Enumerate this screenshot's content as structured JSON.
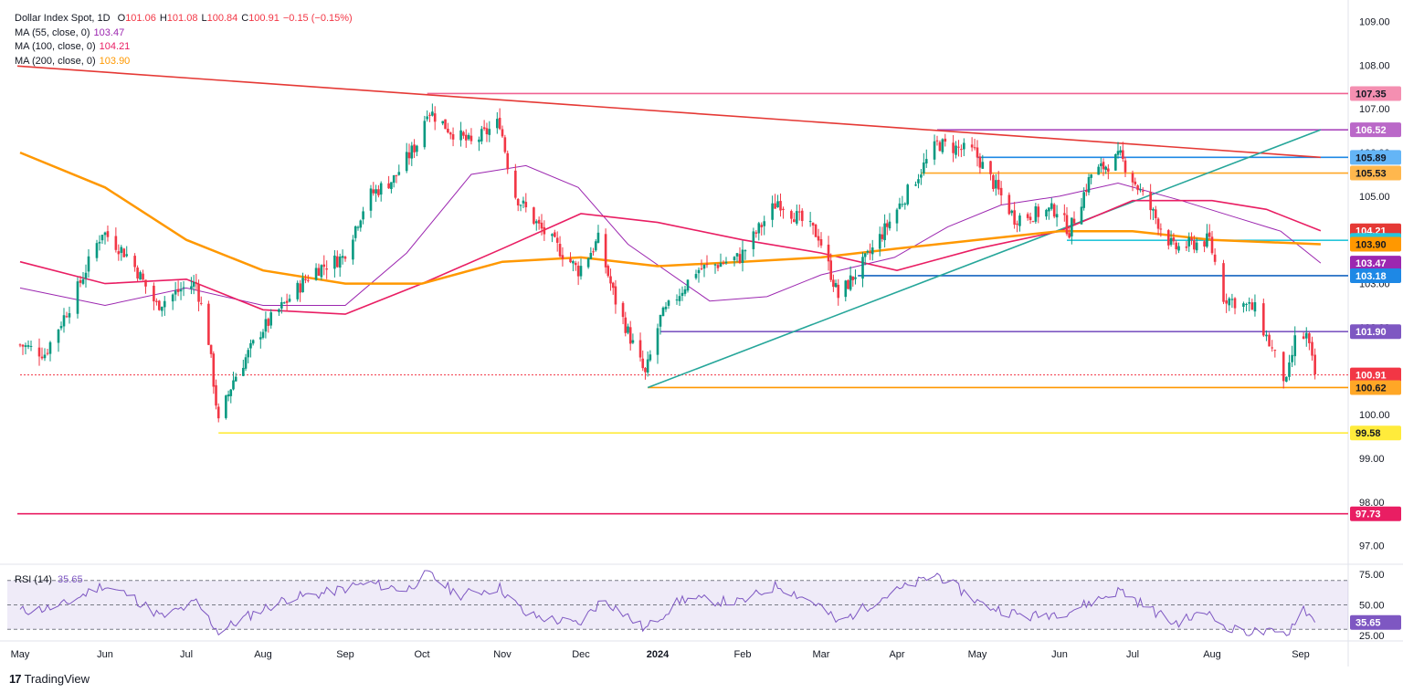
{
  "header": {
    "symbol_title": "Dollar Index Spot, 1D",
    "ohlc": [
      {
        "label": "O",
        "value": "101.06"
      },
      {
        "label": "H",
        "value": "101.08"
      },
      {
        "label": "L",
        "value": "100.84"
      },
      {
        "label": "C",
        "value": "100.91"
      },
      {
        "label": "",
        "value": "−0.15 (−0.15%)"
      }
    ],
    "indicators": [
      {
        "label": "MA (55, close, 0)",
        "value": "103.47",
        "color": "#9c27b0"
      },
      {
        "label": "MA (100, close, 0)",
        "value": "104.21",
        "color": "#e91e63"
      },
      {
        "label": "MA (200, close, 0)",
        "value": "103.90",
        "color": "#ff9800"
      }
    ]
  },
  "rsi_legend": {
    "label": "RSI (14)",
    "value": "35.65",
    "color": "#7e57c2"
  },
  "branding": {
    "name": "TradingView"
  },
  "chart_data": {
    "type": "line",
    "title": "Dollar Index Spot, 1D",
    "x_labels": [
      "May",
      "Jun",
      "Jul",
      "Aug",
      "Sep",
      "Oct",
      "Nov",
      "Dec",
      "2024",
      "Feb",
      "Mar",
      "Apr",
      "May",
      "Jun",
      "Jul",
      "Aug",
      "Sep"
    ],
    "y_ticks": [
      "109.00",
      "108.00",
      "107.00",
      "106.00",
      "105.00",
      "104.00",
      "103.00",
      "102.00",
      "101.00",
      "100.00",
      "99.00",
      "98.00",
      "97.00"
    ],
    "ylim": [
      96.7,
      109.45
    ],
    "close_path": [
      [
        "2023-05-01",
        101.6
      ],
      [
        "2023-05-10",
        101.4
      ],
      [
        "2023-05-20",
        102.6
      ],
      [
        "2023-05-31",
        104.2
      ],
      [
        "2023-06-10",
        103.6
      ],
      [
        "2023-06-20",
        102.5
      ],
      [
        "2023-06-30",
        102.9
      ],
      [
        "2023-07-05",
        103.0
      ],
      [
        "2023-07-10",
        101.7
      ],
      [
        "2023-07-14",
        99.8
      ],
      [
        "2023-07-20",
        100.8
      ],
      [
        "2023-07-31",
        101.9
      ],
      [
        "2023-08-10",
        102.6
      ],
      [
        "2023-08-20",
        103.3
      ],
      [
        "2023-08-31",
        103.6
      ],
      [
        "2023-09-10",
        105.0
      ],
      [
        "2023-09-20",
        105.4
      ],
      [
        "2023-09-30",
        106.3
      ],
      [
        "2023-10-03",
        107.0
      ],
      [
        "2023-10-12",
        106.5
      ],
      [
        "2023-10-20",
        106.2
      ],
      [
        "2023-10-31",
        106.7
      ],
      [
        "2023-11-05",
        105.1
      ],
      [
        "2023-11-15",
        104.3
      ],
      [
        "2023-11-30",
        103.3
      ],
      [
        "2023-12-08",
        104.0
      ],
      [
        "2023-12-15",
        102.6
      ],
      [
        "2023-12-27",
        100.9
      ],
      [
        "2024-01-02",
        102.2
      ],
      [
        "2024-01-15",
        103.3
      ],
      [
        "2024-01-31",
        103.6
      ],
      [
        "2024-02-14",
        104.9
      ],
      [
        "2024-02-29",
        104.1
      ],
      [
        "2024-03-08",
        102.7
      ],
      [
        "2024-03-20",
        103.6
      ],
      [
        "2024-03-31",
        104.6
      ],
      [
        "2024-04-16",
        106.2
      ],
      [
        "2024-04-30",
        106.0
      ],
      [
        "2024-05-15",
        104.5
      ],
      [
        "2024-05-31",
        104.7
      ],
      [
        "2024-06-05",
        104.2
      ],
      [
        "2024-06-14",
        105.5
      ],
      [
        "2024-06-26",
        105.9
      ],
      [
        "2024-07-05",
        105.0
      ],
      [
        "2024-07-17",
        103.8
      ],
      [
        "2024-07-31",
        104.0
      ],
      [
        "2024-08-05",
        102.7
      ],
      [
        "2024-08-16",
        102.4
      ],
      [
        "2024-08-27",
        100.7
      ],
      [
        "2024-08-30",
        101.7
      ],
      [
        "2024-09-03",
        101.8
      ],
      [
        "2024-09-06",
        100.91
      ]
    ],
    "moving_averages": [
      {
        "name": "MA (55, close, 0)",
        "color": "#9c27b0",
        "points": [
          [
            "2023-05-01",
            102.9
          ],
          [
            "2023-06-01",
            102.5
          ],
          [
            "2023-07-01",
            102.9
          ],
          [
            "2023-08-01",
            102.5
          ],
          [
            "2023-09-01",
            102.5
          ],
          [
            "2023-09-25",
            103.7
          ],
          [
            "2023-10-20",
            105.5
          ],
          [
            "2023-11-10",
            105.7
          ],
          [
            "2023-11-30",
            105.2
          ],
          [
            "2023-12-20",
            103.9
          ],
          [
            "2024-01-20",
            102.6
          ],
          [
            "2024-02-10",
            102.7
          ],
          [
            "2024-03-01",
            103.2
          ],
          [
            "2024-03-31",
            103.6
          ],
          [
            "2024-04-20",
            104.3
          ],
          [
            "2024-05-10",
            104.8
          ],
          [
            "2024-06-01",
            105.0
          ],
          [
            "2024-06-25",
            105.3
          ],
          [
            "2024-07-20",
            104.9
          ],
          [
            "2024-08-10",
            104.5
          ],
          [
            "2024-08-25",
            104.2
          ],
          [
            "2024-09-08",
            103.47
          ]
        ]
      },
      {
        "name": "MA (100, close, 0)",
        "color": "#e91e63",
        "points": [
          [
            "2023-05-01",
            103.5
          ],
          [
            "2023-06-01",
            103.0
          ],
          [
            "2023-07-01",
            103.1
          ],
          [
            "2023-08-01",
            102.4
          ],
          [
            "2023-09-01",
            102.3
          ],
          [
            "2023-10-01",
            103.0
          ],
          [
            "2023-11-01",
            103.8
          ],
          [
            "2023-12-01",
            104.6
          ],
          [
            "2024-01-01",
            104.4
          ],
          [
            "2024-02-01",
            104.0
          ],
          [
            "2024-03-01",
            103.7
          ],
          [
            "2024-04-01",
            103.3
          ],
          [
            "2024-05-01",
            103.8
          ],
          [
            "2024-06-01",
            104.2
          ],
          [
            "2024-07-01",
            104.9
          ],
          [
            "2024-08-01",
            104.9
          ],
          [
            "2024-08-20",
            104.7
          ],
          [
            "2024-09-08",
            104.21
          ]
        ]
      },
      {
        "name": "MA (200, close, 0)",
        "color": "#ff9800",
        "points": [
          [
            "2023-05-01",
            106.0
          ],
          [
            "2023-06-01",
            105.2
          ],
          [
            "2023-07-01",
            104.0
          ],
          [
            "2023-08-01",
            103.3
          ],
          [
            "2023-09-01",
            103.0
          ],
          [
            "2023-10-01",
            103.0
          ],
          [
            "2023-11-01",
            103.5
          ],
          [
            "2023-12-01",
            103.6
          ],
          [
            "2024-01-01",
            103.4
          ],
          [
            "2024-02-01",
            103.5
          ],
          [
            "2024-03-01",
            103.6
          ],
          [
            "2024-04-01",
            103.8
          ],
          [
            "2024-05-01",
            104.0
          ],
          [
            "2024-06-01",
            104.2
          ],
          [
            "2024-07-01",
            104.2
          ],
          [
            "2024-08-01",
            104.0
          ],
          [
            "2024-09-08",
            103.9
          ]
        ]
      }
    ],
    "trendlines": [
      {
        "name": "descending-resistance",
        "color": "#e53935",
        "from": [
          "2023-04-30",
          107.98
        ],
        "to": [
          "2024-09-08",
          105.89
        ]
      },
      {
        "name": "ascending-support",
        "color": "#26a69a",
        "from": [
          "2023-12-28",
          100.62
        ],
        "to": [
          "2024-09-08",
          106.52
        ]
      }
    ],
    "horizontal_levels": [
      {
        "value": "107.35",
        "label": "107.35",
        "line": "#f06292",
        "bg": "#f48fb1",
        "fg": "#131722",
        "from": "2023-10-03"
      },
      {
        "value": "106.52",
        "label": "106.52",
        "line": "#ab47bc",
        "bg": "#ba68c8",
        "fg": "#ffffff",
        "from": "2024-04-16"
      },
      {
        "value": "105.89",
        "label": "105.89",
        "line": "#1e88e5",
        "bg": "#64b5f6",
        "fg": "#131722",
        "from": "2024-05-01"
      },
      {
        "value": "105.53",
        "label": "105.53",
        "line": "#ffa726",
        "bg": "#ffb74d",
        "fg": "#131722",
        "from": "2024-04-10"
      },
      {
        "value": "104.21",
        "label": "104.21",
        "line": "",
        "bg": "#e53935",
        "fg": "#ffffff",
        "from": ""
      },
      {
        "value": "103.99",
        "label": "103.99",
        "line": "#26c6da",
        "bg": "#26c6da",
        "fg": "#131722",
        "from": "2024-06-04"
      },
      {
        "value": "103.90",
        "label": "103.90",
        "line": "",
        "bg": "#ff9800",
        "fg": "#131722",
        "from": ""
      },
      {
        "value": "103.47",
        "label": "103.47",
        "line": "",
        "bg": "#9c27b0",
        "fg": "#ffffff",
        "from": ""
      },
      {
        "value": "103.18",
        "label": "103.18",
        "line": "#1565c0",
        "bg": "#1e88e5",
        "fg": "#ffffff",
        "from": "2024-03-16"
      },
      {
        "value": "101.90",
        "label": "101.90",
        "line": "#7e57c2",
        "bg": "#7e57c2",
        "fg": "#ffffff",
        "from": "2024-01-02"
      },
      {
        "value": "100.91",
        "label": "100.91",
        "line": "#f23645",
        "bg": "#f23645",
        "fg": "#ffffff",
        "from": "2023-05-01",
        "dashed": true
      },
      {
        "value": "100.62",
        "label": "100.62",
        "line": "#ff9800",
        "bg": "#ffa726",
        "fg": "#131722",
        "from": "2023-12-28"
      },
      {
        "value": "99.58",
        "label": "99.58",
        "line": "#ffeb3b",
        "bg": "#ffeb3b",
        "fg": "#131722",
        "from": "2023-07-14"
      },
      {
        "value": "97.73",
        "label": "97.73",
        "line": "#e91e63",
        "bg": "#e91e63",
        "fg": "#ffffff",
        "from": "2023-04-30"
      }
    ],
    "rsi": {
      "ylim": [
        22,
        78
      ],
      "ticks": [
        "75.00",
        "50.00",
        "25.00"
      ],
      "band": [
        30,
        70
      ],
      "current": "35.65",
      "points": [
        [
          "2023-05-01",
          45
        ],
        [
          "2023-05-15",
          48
        ],
        [
          "2023-05-31",
          66
        ],
        [
          "2023-06-10",
          58
        ],
        [
          "2023-06-22",
          40
        ],
        [
          "2023-07-05",
          52
        ],
        [
          "2023-07-14",
          28
        ],
        [
          "2023-07-25",
          40
        ],
        [
          "2023-08-10",
          55
        ],
        [
          "2023-08-25",
          60
        ],
        [
          "2023-09-10",
          68
        ],
        [
          "2023-09-25",
          62
        ],
        [
          "2023-10-03",
          76
        ],
        [
          "2023-10-15",
          58
        ],
        [
          "2023-10-31",
          64
        ],
        [
          "2023-11-10",
          42
        ],
        [
          "2023-11-30",
          34
        ],
        [
          "2023-12-10",
          55
        ],
        [
          "2023-12-27",
          30
        ],
        [
          "2024-01-10",
          55
        ],
        [
          "2024-01-31",
          52
        ],
        [
          "2024-02-14",
          66
        ],
        [
          "2024-02-29",
          50
        ],
        [
          "2024-03-08",
          35
        ],
        [
          "2024-03-25",
          55
        ],
        [
          "2024-04-16",
          75
        ],
        [
          "2024-05-03",
          50
        ],
        [
          "2024-05-20",
          40
        ],
        [
          "2024-06-05",
          45
        ],
        [
          "2024-06-26",
          62
        ],
        [
          "2024-07-17",
          35
        ],
        [
          "2024-08-01",
          45
        ],
        [
          "2024-08-05",
          30
        ],
        [
          "2024-08-27",
          26
        ],
        [
          "2024-09-02",
          48
        ],
        [
          "2024-09-06",
          35.65
        ]
      ]
    }
  }
}
